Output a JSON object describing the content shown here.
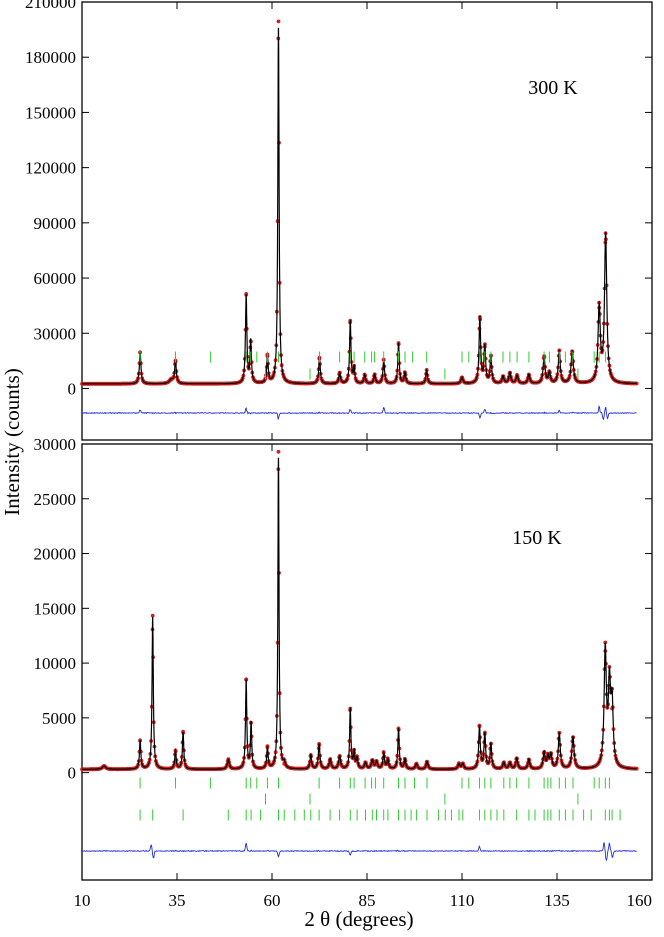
{
  "figure": {
    "ylabel": "Intensity (counts)",
    "xlabel": "2 θ (degrees)"
  },
  "colors": {
    "observed": "#d42020",
    "calculated": "#000000",
    "difference": "#1f2fd8",
    "reflection_ticks": "#33cc33"
  },
  "chart_data": [
    {
      "type": "line",
      "title": "",
      "annotation": "300 K",
      "xlim": [
        10,
        160
      ],
      "ylim": [
        -28000,
        210000
      ],
      "yticks": [
        0,
        30000,
        60000,
        90000,
        120000,
        150000,
        180000,
        210000
      ],
      "baseline": 2500,
      "peaks": [
        [
          25.3,
          17000,
          0.25
        ],
        [
          33.5,
          2200,
          0.6
        ],
        [
          34.6,
          12500,
          0.25
        ],
        [
          53.2,
          48000,
          0.22
        ],
        [
          54.4,
          23000,
          0.22
        ],
        [
          58.8,
          15000,
          0.22
        ],
        [
          61.7,
          195000,
          0.2
        ],
        [
          72.5,
          14000,
          0.25
        ],
        [
          77.8,
          6000,
          0.25
        ],
        [
          80.6,
          34000,
          0.22
        ],
        [
          81.6,
          8500,
          0.22
        ],
        [
          84.4,
          5000,
          0.25
        ],
        [
          87.0,
          5000,
          0.25
        ],
        [
          89.4,
          13000,
          0.25
        ],
        [
          93.3,
          22000,
          0.22
        ],
        [
          95.0,
          6000,
          0.25
        ],
        [
          100.7,
          7500,
          0.25
        ],
        [
          110.0,
          3500,
          0.3
        ],
        [
          114.7,
          36000,
          0.25
        ],
        [
          116.0,
          20000,
          0.25
        ],
        [
          117.6,
          15000,
          0.25
        ],
        [
          120.8,
          4000,
          0.3
        ],
        [
          122.6,
          6000,
          0.3
        ],
        [
          124.5,
          4500,
          0.3
        ],
        [
          127.6,
          5000,
          0.3
        ],
        [
          131.6,
          15000,
          0.3
        ],
        [
          133.0,
          6000,
          0.3
        ],
        [
          135.6,
          18000,
          0.3
        ],
        [
          139.0,
          17500,
          0.35
        ],
        [
          146.1,
          41000,
          0.35
        ],
        [
          147.8,
          81000,
          0.35
        ]
      ],
      "ticks_row1": [
        25.3,
        34.6,
        43.8,
        53.2,
        54.4,
        56.0,
        58.8,
        61.7,
        72.5,
        77.8,
        80.6,
        81.6,
        84.4,
        86.2,
        87.0,
        89.4,
        93.3,
        95.0,
        97.0,
        100.7,
        110.0,
        111.8,
        114.7,
        116.0,
        117.6,
        120.8,
        122.6,
        124.5,
        127.6,
        131.6,
        133.0,
        135.6,
        137.2,
        139.0,
        144.8,
        146.1,
        147.8
      ],
      "ticks_row2": [
        58.3,
        70.0,
        105.5,
        140.5
      ],
      "residual_spikes": [
        [
          25.3,
          1400
        ],
        [
          53.2,
          2200
        ],
        [
          61.7,
          -2800
        ],
        [
          80.6,
          1300
        ],
        [
          89.4,
          2500
        ],
        [
          114.7,
          -2600
        ],
        [
          116.0,
          1500
        ],
        [
          135.6,
          1200
        ],
        [
          146.1,
          2800
        ],
        [
          147.2,
          -3000
        ],
        [
          147.8,
          2600
        ],
        [
          148.3,
          -2500
        ]
      ]
    },
    {
      "type": "line",
      "title": "",
      "annotation": "150 K",
      "xlim": [
        10,
        160
      ],
      "ylim": [
        -9800,
        30000
      ],
      "yticks": [
        0,
        5000,
        10000,
        15000,
        20000,
        25000,
        30000
      ],
      "baseline": 300,
      "peaks": [
        [
          15.8,
          300,
          0.5
        ],
        [
          25.3,
          2600,
          0.22
        ],
        [
          28.6,
          13900,
          0.2
        ],
        [
          34.6,
          1700,
          0.22
        ],
        [
          36.6,
          3400,
          0.22
        ],
        [
          48.5,
          900,
          0.3
        ],
        [
          53.2,
          8100,
          0.2
        ],
        [
          54.5,
          4200,
          0.2
        ],
        [
          58.8,
          2000,
          0.22
        ],
        [
          61.7,
          28700,
          0.18
        ],
        [
          63.2,
          500,
          0.3
        ],
        [
          70.2,
          1300,
          0.25
        ],
        [
          72.4,
          2300,
          0.25
        ],
        [
          75.3,
          900,
          0.3
        ],
        [
          77.8,
          1200,
          0.3
        ],
        [
          80.6,
          5500,
          0.2
        ],
        [
          81.6,
          1500,
          0.22
        ],
        [
          82.4,
          1000,
          0.25
        ],
        [
          84.6,
          600,
          0.3
        ],
        [
          86.4,
          800,
          0.3
        ],
        [
          87.5,
          700,
          0.3
        ],
        [
          89.4,
          1500,
          0.25
        ],
        [
          90.5,
          900,
          0.25
        ],
        [
          93.3,
          3700,
          0.22
        ],
        [
          95.0,
          900,
          0.25
        ],
        [
          98.0,
          500,
          0.3
        ],
        [
          100.8,
          700,
          0.3
        ],
        [
          109.2,
          500,
          0.3
        ],
        [
          110.2,
          500,
          0.3
        ],
        [
          114.6,
          3900,
          0.25
        ],
        [
          116.0,
          3200,
          0.25
        ],
        [
          117.6,
          2300,
          0.25
        ],
        [
          121.0,
          600,
          0.3
        ],
        [
          122.6,
          600,
          0.3
        ],
        [
          124.4,
          1000,
          0.3
        ],
        [
          127.6,
          900,
          0.3
        ],
        [
          131.6,
          1500,
          0.3
        ],
        [
          132.6,
          1100,
          0.3
        ],
        [
          133.4,
          1300,
          0.3
        ],
        [
          135.6,
          3300,
          0.3
        ],
        [
          139.2,
          2900,
          0.35
        ],
        [
          147.7,
          10700,
          0.35
        ],
        [
          148.8,
          7300,
          0.35
        ],
        [
          149.5,
          5500,
          0.35
        ]
      ],
      "ticks_row1": [
        25.3,
        34.6,
        43.8,
        53.2,
        54.4,
        56.0,
        58.8,
        61.7,
        72.4,
        77.8,
        80.6,
        81.6,
        84.5,
        86.2,
        87.2,
        89.4,
        93.3,
        95.0,
        97.5,
        100.8,
        110.0,
        111.8,
        114.6,
        116.0,
        117.6,
        121.0,
        122.6,
        124.4,
        127.6,
        131.6,
        132.6,
        133.4,
        135.6,
        137.2,
        139.2,
        144.8,
        146.1,
        147.7,
        148.8
      ],
      "ticks_row2": [
        58.3,
        70.0,
        105.5,
        140.5
      ],
      "ticks_row3": [
        25.3,
        28.6,
        36.6,
        48.5,
        53.2,
        54.5,
        57.0,
        61.7,
        63.2,
        66.0,
        68.5,
        70.2,
        72.4,
        75.3,
        77.8,
        80.6,
        82.4,
        84.6,
        86.4,
        87.5,
        89.4,
        90.5,
        93.3,
        95.0,
        96.6,
        98.0,
        100.8,
        103.8,
        105.6,
        107.2,
        109.2,
        110.2,
        114.6,
        116.0,
        117.6,
        119.2,
        121.0,
        124.4,
        127.6,
        129.2,
        131.6,
        132.6,
        133.4,
        135.6,
        137.2,
        139.2,
        142.0,
        144.0,
        147.7,
        148.8,
        149.5,
        151.6
      ],
      "residual_spikes": [
        [
          28.2,
          700
        ],
        [
          28.8,
          -900
        ],
        [
          53.2,
          900
        ],
        [
          61.7,
          -600
        ],
        [
          80.6,
          -500
        ],
        [
          114.6,
          500
        ],
        [
          147.4,
          1000
        ],
        [
          148.0,
          -1100
        ],
        [
          148.8,
          900
        ],
        [
          149.6,
          -800
        ]
      ]
    }
  ],
  "xaxis": {
    "ticks": [
      10,
      35,
      60,
      85,
      110,
      135,
      160
    ],
    "labels": [
      "10",
      "35",
      "60",
      "85",
      "110",
      "135",
      "160"
    ]
  }
}
